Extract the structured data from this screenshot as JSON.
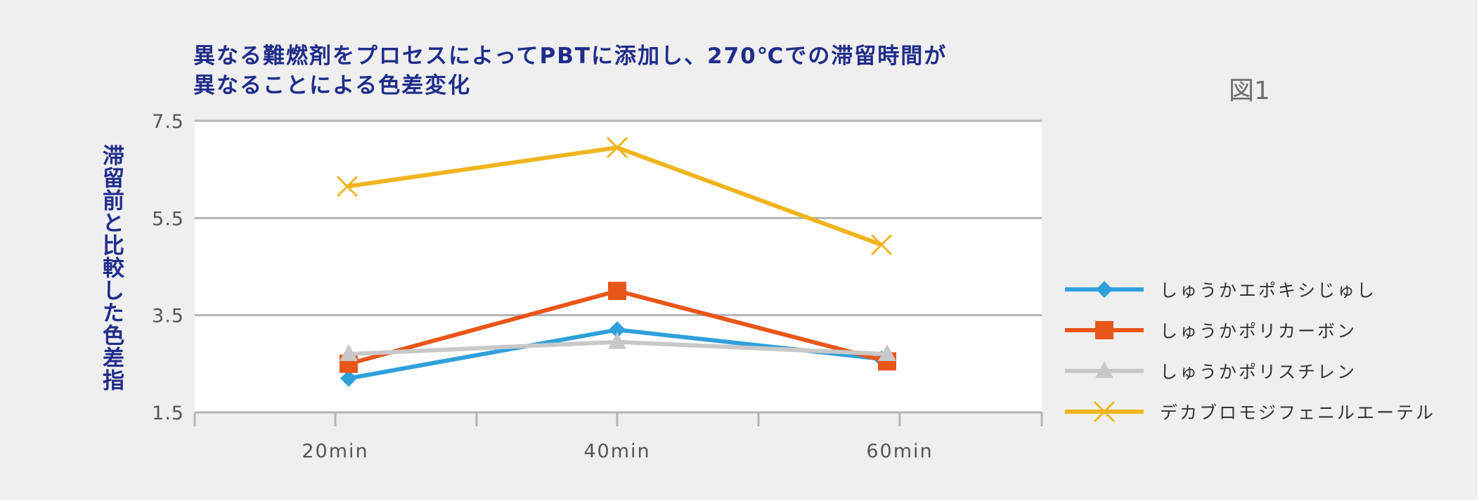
{
  "figure_label": "図1",
  "chart_data": {
    "type": "line",
    "title_lines": [
      "異なる難燃剤をプロセスによってPBTに添加し、270℃での滞留時間が",
      "異なることによる色差変化"
    ],
    "xlabel": "",
    "ylabel": "滞留前と比較した色差指",
    "categories": [
      "20min",
      "40min",
      "60min"
    ],
    "yticks": [
      "7.5",
      "5.5",
      "3.5",
      "1.5"
    ],
    "ylim": [
      1.5,
      7.5
    ],
    "grid": true,
    "legend_position": "right",
    "series": [
      {
        "name": "しゅうかエポキシじゅし",
        "values": [
          2.2,
          3.2,
          2.6
        ],
        "color": "#2fa0dc",
        "marker": "diamond"
      },
      {
        "name": "しゅうかポリカーボン",
        "values": [
          2.5,
          4.0,
          2.55
        ],
        "color": "#e8561a",
        "marker": "square"
      },
      {
        "name": "しゅうかポリスチレン",
        "values": [
          2.7,
          2.95,
          2.7
        ],
        "color": "#c8c8c8",
        "marker": "triangle"
      },
      {
        "name": "デカブロモジフェニルエーテル",
        "values": [
          6.15,
          6.95,
          4.95
        ],
        "color": "#f0b51e",
        "marker": "x"
      }
    ]
  }
}
